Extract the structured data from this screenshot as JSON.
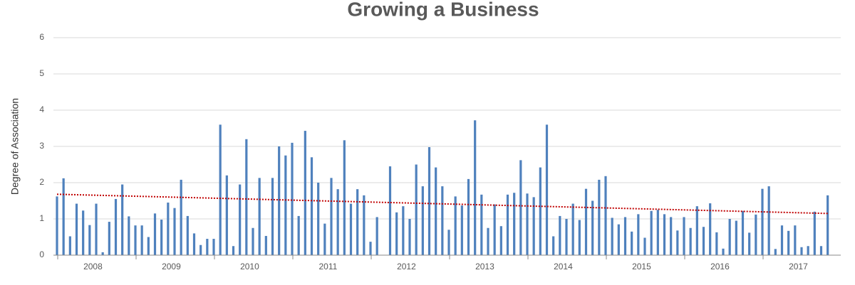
{
  "chart_data": {
    "type": "bar",
    "title": "Growing a Business",
    "y_label": "Degree of Association",
    "categories": [
      "2008",
      "2009",
      "2010",
      "2011",
      "2012",
      "2013",
      "2014",
      "2015",
      "2016",
      "2017"
    ],
    "values": [
      [
        1.62,
        2.12,
        0.52,
        1.42,
        1.23,
        0.83,
        1.42,
        0.08,
        0.92,
        1.55,
        1.95,
        1.07
      ],
      [
        0.82,
        0.82,
        0.5,
        1.15,
        0.98,
        1.45,
        1.3,
        2.08,
        1.08,
        0.6,
        0.28,
        0.45
      ],
      [
        0.45,
        3.6,
        2.2,
        0.25,
        1.95,
        3.2,
        0.75,
        2.13,
        0.53,
        2.13,
        3.0,
        2.75
      ],
      [
        3.1,
        1.08,
        3.43,
        2.7,
        2.0,
        0.87,
        2.13,
        1.82,
        3.17,
        1.42,
        1.82,
        1.65
      ],
      [
        0.37,
        1.05,
        0,
        2.45,
        1.18,
        1.35,
        1.0,
        2.5,
        1.9,
        2.98,
        2.42,
        1.9
      ],
      [
        0.7,
        1.62,
        1.37,
        2.1,
        3.72,
        1.67,
        0.75,
        1.4,
        0.8,
        1.67,
        1.72,
        2.62
      ],
      [
        1.7,
        1.6,
        2.42,
        3.6,
        0.52,
        1.08,
        1.0,
        1.42,
        0.97,
        1.83,
        1.5,
        2.08
      ],
      [
        2.18,
        1.03,
        0.85,
        1.05,
        0.65,
        1.13,
        0.48,
        1.22,
        1.25,
        1.13,
        1.05,
        0.68
      ],
      [
        1.05,
        0.75,
        1.35,
        0.78,
        1.43,
        0.63,
        0.18,
        1.0,
        0.95,
        1.22,
        0.62,
        1.12
      ],
      [
        1.83,
        1.9,
        0.17,
        0.82,
        0.67,
        0.82,
        0.22,
        0.25,
        1.2,
        0.25,
        1.65
      ]
    ],
    "color": "#4f81bd",
    "trendline": {
      "color": "#c00000",
      "values": [
        1.68,
        1.15
      ]
    },
    "ylim": [
      0,
      6
    ],
    "yticks": [
      0,
      1,
      2,
      3,
      4,
      5,
      6
    ],
    "grid": true
  }
}
